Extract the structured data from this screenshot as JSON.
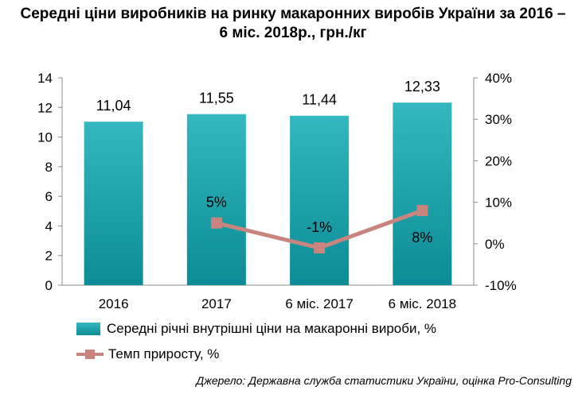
{
  "title_line1": "Середні ціни виробників на ринку макаронних виробів України за 2016 –",
  "title_line2": "6 міс. 2018р., грн./кг",
  "source": "Джерело: Державна служба статистики України, оцінка Pro-Consulting",
  "colors": {
    "bar": "#1aa3ad",
    "line": "#c9857d",
    "axis": "#8c8c8c"
  },
  "chart_data": {
    "type": "bar",
    "categories": [
      "2016",
      "2017",
      "6 міс. 2017",
      "6 міс. 2018"
    ],
    "series": [
      {
        "name": "Середні річні внутрішні ціни на макаронні вироби, %",
        "type": "bar",
        "axis": "left",
        "values": [
          11.04,
          11.55,
          11.44,
          12.33
        ],
        "labels": [
          "11,04",
          "11,55",
          "11,44",
          "12,33"
        ]
      },
      {
        "name": "Темп приросту, %",
        "type": "line",
        "axis": "right",
        "points": [
          {
            "category": "2017",
            "value": 5,
            "label": "5%"
          },
          {
            "category": "6 міс. 2017",
            "value": -1,
            "label": "-1%"
          },
          {
            "category": "6 міс. 2018",
            "value": 8,
            "label": "8%"
          }
        ]
      }
    ],
    "y_left": {
      "range": [
        0,
        14
      ],
      "ticks": [
        "0",
        "2",
        "4",
        "6",
        "8",
        "10",
        "12",
        "14"
      ]
    },
    "y_right": {
      "range": [
        -10,
        40
      ],
      "ticks": [
        "-10%",
        "0%",
        "10%",
        "20%",
        "30%",
        "40%"
      ]
    },
    "legend_position": "bottom",
    "grid": false
  }
}
